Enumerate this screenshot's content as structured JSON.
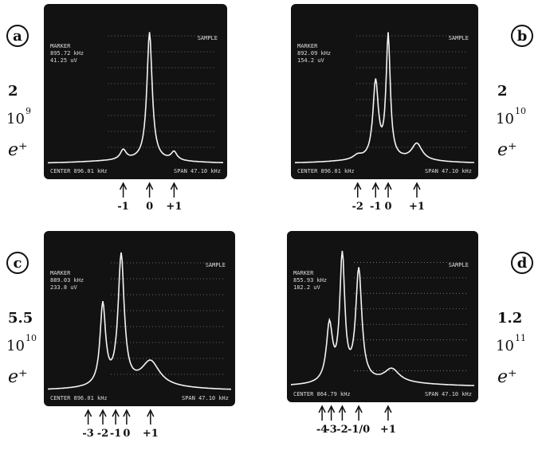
{
  "panels": [
    {
      "label": "a",
      "density": "2",
      "base": "10",
      "exponent": "9",
      "particle": "e⁺",
      "screen": {
        "marker_label": "MARKER",
        "marker_freq": "895.72 kHz",
        "marker_amp": "41.25 uV",
        "mode": "SAMPLE",
        "center": "CENTER 896.01 kHz",
        "span": "SPAN 47.10 kHz"
      },
      "arrows": [
        "-1",
        "0",
        "+1"
      ]
    },
    {
      "label": "b",
      "density": "2",
      "base": "10",
      "exponent": "10",
      "particle": "e⁺",
      "screen": {
        "marker_label": "MARKER",
        "marker_freq": "892.09 kHz",
        "marker_amp": "154.2 uV",
        "mode": "SAMPLE",
        "center": "CENTER 896.01 kHz",
        "span": "SPAN 47.10 kHz"
      },
      "arrows": [
        "-2",
        "-1",
        "0",
        "+1"
      ]
    },
    {
      "label": "c",
      "density": "5.5",
      "base": "10",
      "exponent": "10",
      "particle": "e⁺",
      "screen": {
        "marker_label": "MARKER",
        "marker_freq": "889.03 kHz",
        "marker_amp": "233.8 uV",
        "mode": "SAMPLE",
        "center": "CENTER 896.01 kHz",
        "span": "SPAN 47.10 kHz"
      },
      "arrows": [
        "-3",
        "-2",
        "-1",
        "0",
        "+1"
      ]
    },
    {
      "label": "d",
      "density": "1.2",
      "base": "10",
      "exponent": "11",
      "particle": "e⁺",
      "screen": {
        "marker_label": "MARKER",
        "marker_freq": "855.93 kHz",
        "marker_amp": "182.2 uV",
        "mode": "SAMPLE",
        "center": "CENTER 864.79 kHz",
        "span": "SPAN 47.10 kHz"
      },
      "arrows": [
        "-4",
        "-3",
        "-2",
        "-1/0",
        "+1"
      ]
    }
  ]
}
